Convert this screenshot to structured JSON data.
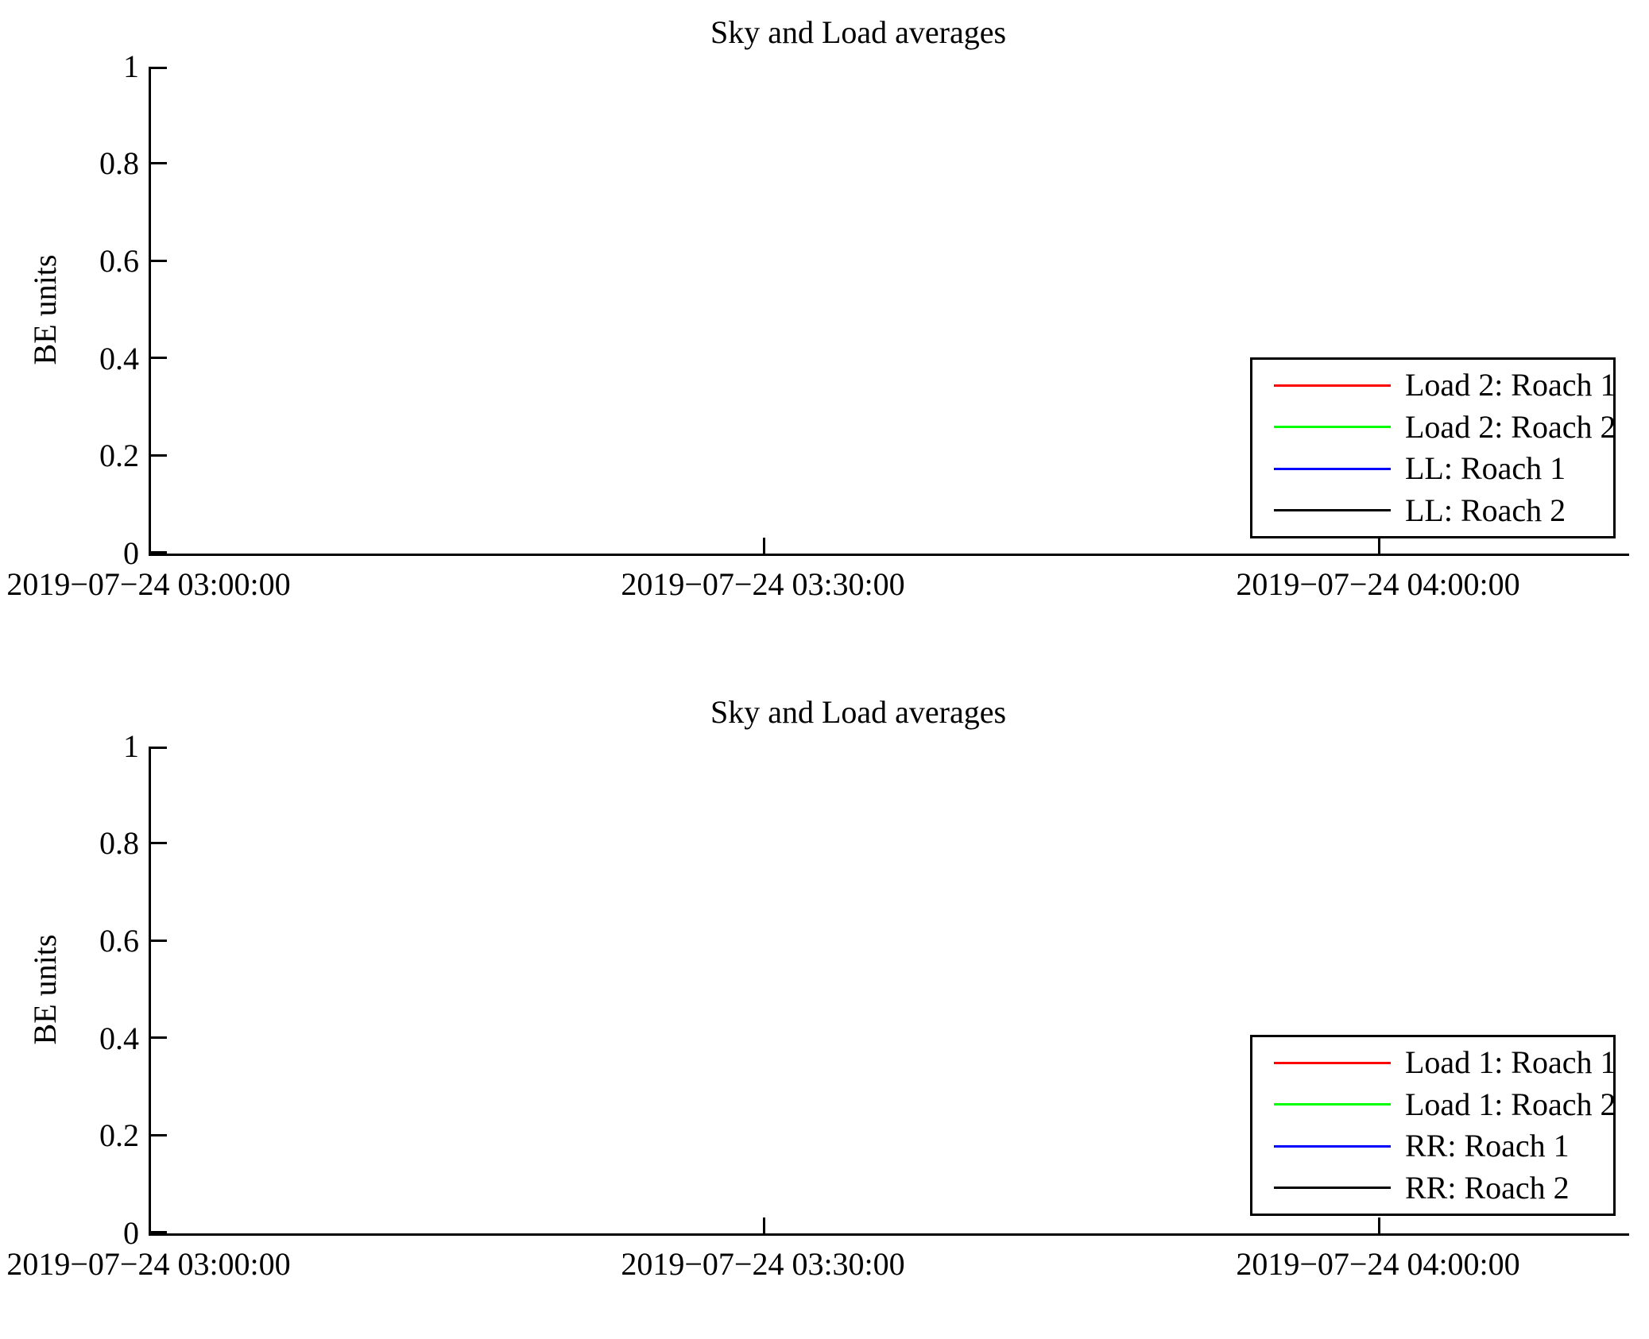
{
  "charts": [
    {
      "title": "Sky and Load averages",
      "ylabel": "BE units",
      "yticks": [
        "1",
        "0.8",
        "0.6",
        "0.4",
        "0.2",
        "0"
      ],
      "xticks": [
        "2019−07−24 03:00:00",
        "2019−07−24 03:30:00",
        "2019−07−24 04:00:00"
      ],
      "legend": [
        {
          "label": "Load 2: Roach 1",
          "color": "#ff0000"
        },
        {
          "label": "Load 2: Roach 2",
          "color": "#00ff00"
        },
        {
          "label": "LL: Roach 1",
          "color": "#0000ff"
        },
        {
          "label": "LL: Roach 2",
          "color": "#000000"
        }
      ]
    },
    {
      "title": "Sky and Load averages",
      "ylabel": "BE units",
      "yticks": [
        "1",
        "0.8",
        "0.6",
        "0.4",
        "0.2",
        "0"
      ],
      "xticks": [
        "2019−07−24 03:00:00",
        "2019−07−24 03:30:00",
        "2019−07−24 04:00:00"
      ],
      "legend": [
        {
          "label": "Load 1: Roach 1",
          "color": "#ff0000"
        },
        {
          "label": "Load 1: Roach 2",
          "color": "#00ff00"
        },
        {
          "label": "RR: Roach 1",
          "color": "#0000ff"
        },
        {
          "label": "RR: Roach 2",
          "color": "#000000"
        }
      ]
    }
  ],
  "chart_data": [
    {
      "type": "line",
      "title": "Sky and Load averages",
      "xlabel": "",
      "ylabel": "BE units",
      "ylim": [
        0,
        1
      ],
      "yticks": [
        0,
        0.2,
        0.4,
        0.6,
        0.8,
        1
      ],
      "xticks": [
        "2019−07−24 03:00:00",
        "2019−07−24 03:30:00",
        "2019−07−24 04:00:00"
      ],
      "grid": false,
      "legend_position": "right-inside-lower",
      "series": [
        {
          "name": "Load 2: Roach 1",
          "color": "#ff0000",
          "x": [],
          "y": []
        },
        {
          "name": "Load 2: Roach 2",
          "color": "#00ff00",
          "x": [],
          "y": []
        },
        {
          "name": "LL: Roach 1",
          "color": "#0000ff",
          "x": [],
          "y": []
        },
        {
          "name": "LL: Roach 2",
          "color": "#000000",
          "x": [],
          "y": []
        }
      ],
      "data_points_visible": false
    },
    {
      "type": "line",
      "title": "Sky and Load averages",
      "xlabel": "",
      "ylabel": "BE units",
      "ylim": [
        0,
        1
      ],
      "yticks": [
        0,
        0.2,
        0.4,
        0.6,
        0.8,
        1
      ],
      "xticks": [
        "2019−07−24 03:00:00",
        "2019−07−24 03:30:00",
        "2019−07−24 04:00:00"
      ],
      "grid": false,
      "legend_position": "right-inside-lower",
      "series": [
        {
          "name": "Load 1: Roach 1",
          "color": "#ff0000",
          "x": [],
          "y": []
        },
        {
          "name": "Load 1: Roach 2",
          "color": "#00ff00",
          "x": [],
          "y": []
        },
        {
          "name": "RR: Roach 1",
          "color": "#0000ff",
          "x": [],
          "y": []
        },
        {
          "name": "RR: Roach 2",
          "color": "#000000",
          "x": [],
          "y": []
        }
      ],
      "data_points_visible": false
    }
  ]
}
